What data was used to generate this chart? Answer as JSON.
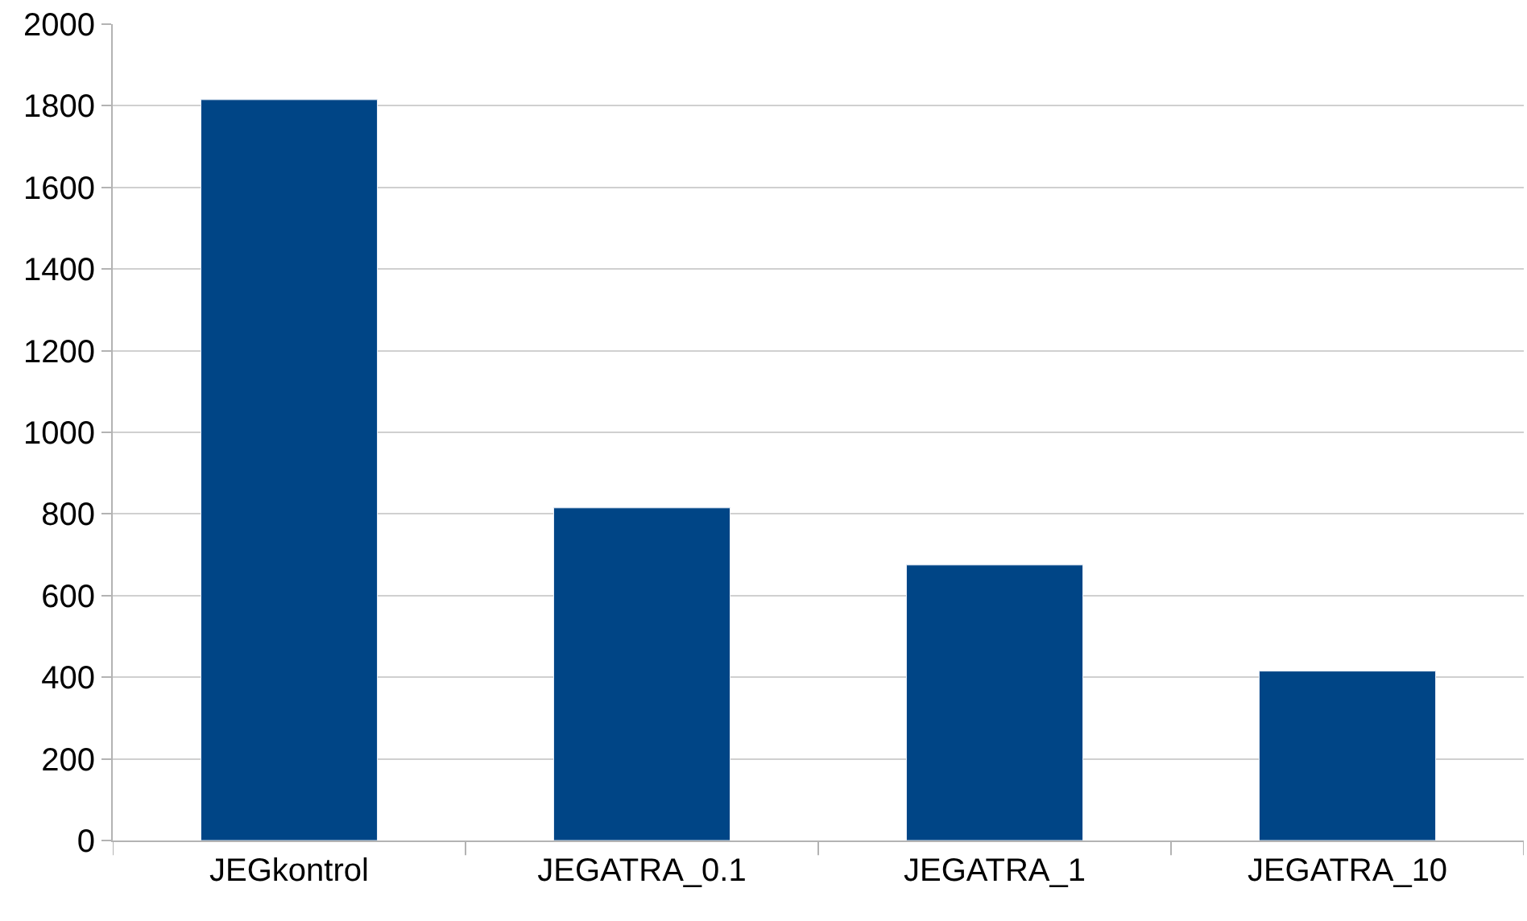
{
  "chart_data": {
    "type": "bar",
    "categories": [
      "JEGkontrol",
      "JEGATRA_0.1",
      "JEGATRA_1",
      "JEGATRA_10"
    ],
    "values": [
      1815,
      815,
      675,
      415
    ],
    "color": "#004586",
    "ylim": [
      0,
      2000
    ],
    "yticks": [
      0,
      200,
      400,
      600,
      800,
      1000,
      1200,
      1400,
      1600,
      1800,
      2000
    ],
    "grid": "y"
  }
}
